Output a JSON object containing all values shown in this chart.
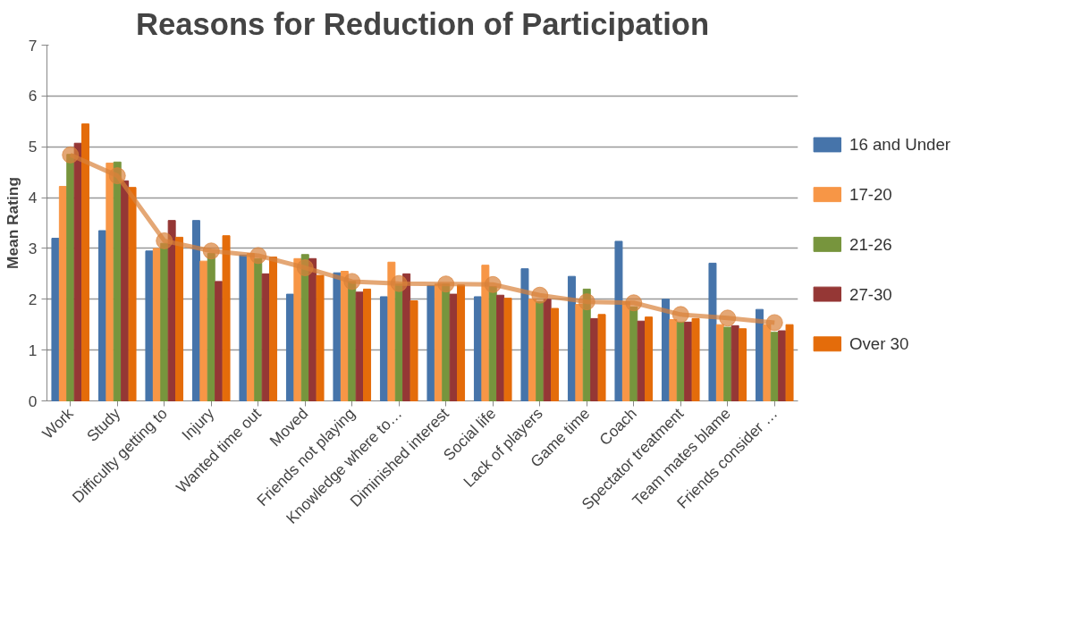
{
  "chart_data": {
    "type": "bar",
    "title": "Reasons for Reduction of Participation",
    "ylabel": "Mean Rating",
    "categories": [
      "Work",
      "Study",
      "Difficulty getting to",
      "Injury",
      "Wanted time out",
      "Moved",
      "Friends not playing",
      "Knowledge where to…",
      "Diminished interest",
      "Social life",
      "Lack of players",
      "Game time",
      "Coach",
      "Spectator treatment",
      "Team mates blame",
      "Friends consider …"
    ],
    "series": [
      {
        "name": "16 and Under",
        "color": "#4674aa",
        "values": [
          3.2,
          3.35,
          2.95,
          3.55,
          2.87,
          2.1,
          2.52,
          2.05,
          2.27,
          2.05,
          2.6,
          2.45,
          3.14,
          2.0,
          2.71,
          1.8
        ]
      },
      {
        "name": "17-20",
        "color": "#f79646",
        "values": [
          4.22,
          4.68,
          3.0,
          2.75,
          2.9,
          2.8,
          2.55,
          2.73,
          2.3,
          2.67,
          2.0,
          1.9,
          1.95,
          1.6,
          1.5,
          1.5
        ]
      },
      {
        "name": "21-26",
        "color": "#77953d",
        "values": [
          4.85,
          4.7,
          3.1,
          2.9,
          2.8,
          2.88,
          2.35,
          2.3,
          2.3,
          2.25,
          1.95,
          2.2,
          1.85,
          1.55,
          1.45,
          1.35
        ]
      },
      {
        "name": "27-30",
        "color": "#953735",
        "values": [
          5.07,
          4.33,
          3.55,
          2.35,
          2.5,
          2.8,
          2.14,
          2.5,
          2.1,
          2.08,
          2.0,
          1.62,
          1.57,
          1.55,
          1.48,
          1.38
        ]
      },
      {
        "name": "Over 30",
        "color": "#e46c0a",
        "values": [
          5.45,
          4.2,
          3.22,
          3.25,
          2.83,
          2.47,
          2.2,
          1.97,
          2.28,
          2.02,
          1.82,
          1.7,
          1.65,
          1.62,
          1.42,
          1.5
        ]
      },
      {
        "type": "line",
        "color": "#d9813b",
        "marker": "circle",
        "values": [
          4.84,
          4.43,
          3.15,
          2.95,
          2.86,
          2.62,
          2.35,
          2.31,
          2.3,
          2.29,
          2.08,
          1.95,
          1.93,
          1.7,
          1.63,
          1.54
        ]
      }
    ],
    "ylim": [
      0,
      7
    ],
    "yticks": [
      0,
      1,
      2,
      3,
      4,
      5,
      6,
      7
    ],
    "grid": "y",
    "legend": "right"
  }
}
